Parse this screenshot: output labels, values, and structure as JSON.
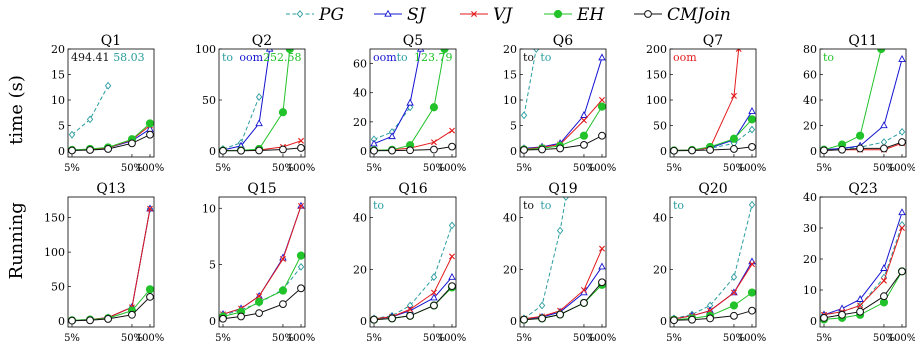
{
  "figure": {
    "ylabel": "Running time (s)",
    "ylabel_words": [
      "Running",
      "time (s)"
    ],
    "x_ticks": [
      "5%",
      "50%",
      "100%"
    ]
  },
  "legend": {
    "placement": "top-center",
    "series": [
      {
        "name": "PG",
        "color": "#2a9d9f",
        "dash": true,
        "marker": "diamond"
      },
      {
        "name": "SJ",
        "color": "#1414d2",
        "dash": false,
        "marker": "triangle"
      },
      {
        "name": "VJ",
        "color": "#e31a1c",
        "dash": false,
        "marker": "cross"
      },
      {
        "name": "EH",
        "color": "#22c22a",
        "dash": false,
        "marker": "filled-circle"
      },
      {
        "name": "CMJoin",
        "color": "#111111",
        "dash": false,
        "marker": "open-circle"
      }
    ]
  },
  "chart_data": [
    {
      "type": "line",
      "title": "Q1",
      "x": [
        5,
        10,
        20,
        50,
        100
      ],
      "ylim": [
        0,
        20
      ],
      "yticks": [
        0,
        5,
        10,
        15,
        20
      ],
      "series": [
        {
          "name": "PG",
          "x": [
            5,
            10,
            20
          ],
          "values": [
            3.2,
            6.2,
            12.8
          ]
        },
        {
          "name": "SJ",
          "values": [
            0.2,
            0.3,
            0.6,
            2.0,
            4.3
          ]
        },
        {
          "name": "VJ",
          "values": [
            0.2,
            0.3,
            0.6,
            2.2,
            5.0
          ]
        },
        {
          "name": "EH",
          "values": [
            0.2,
            0.4,
            0.7,
            2.3,
            5.4
          ]
        },
        {
          "name": "CMJoin",
          "values": [
            0.1,
            0.2,
            0.4,
            1.5,
            3.2
          ]
        }
      ],
      "annotations": [
        {
          "text": "494.41",
          "series": "CMJoin"
        },
        {
          "text": "58.03",
          "series": "PG"
        }
      ]
    },
    {
      "type": "line",
      "title": "Q2",
      "x": [
        5,
        10,
        20,
        50,
        100
      ],
      "ylim": [
        0,
        100
      ],
      "yticks": [
        0,
        50,
        100
      ],
      "series": [
        {
          "name": "PG",
          "x": [
            5,
            10,
            20
          ],
          "values": [
            2,
            8,
            53
          ]
        },
        {
          "name": "SJ",
          "x": [
            5,
            10,
            20,
            30
          ],
          "values": [
            1,
            5,
            27,
            100
          ]
        },
        {
          "name": "VJ",
          "values": [
            0.5,
            0.6,
            1,
            4,
            10
          ]
        },
        {
          "name": "EH",
          "x": [
            5,
            10,
            20,
            50,
            65
          ],
          "values": [
            0.5,
            0.6,
            2,
            38,
            100
          ]
        },
        {
          "name": "CMJoin",
          "values": [
            0.2,
            0.3,
            0.5,
            1.5,
            3
          ]
        }
      ],
      "annotations": [
        {
          "text": "to",
          "series": "PG"
        },
        {
          "text": "oom",
          "series": "SJ"
        },
        {
          "text": "252.58",
          "series": "EH"
        }
      ]
    },
    {
      "type": "line",
      "title": "Q5",
      "x": [
        5,
        10,
        20,
        50,
        100
      ],
      "ylim": [
        0,
        70
      ],
      "yticks": [
        0,
        20,
        40,
        60
      ],
      "series": [
        {
          "name": "PG",
          "x": [
            5,
            10,
            20
          ],
          "values": [
            8,
            13,
            30
          ]
        },
        {
          "name": "SJ",
          "x": [
            5,
            10,
            20,
            30
          ],
          "values": [
            5,
            10,
            33,
            70
          ]
        },
        {
          "name": "VJ",
          "values": [
            0.5,
            0.8,
            2,
            6,
            14
          ]
        },
        {
          "name": "EH",
          "x": [
            5,
            10,
            20,
            50,
            75
          ],
          "values": [
            0.5,
            0.8,
            4,
            30,
            70
          ]
        },
        {
          "name": "CMJoin",
          "values": [
            0.2,
            0.3,
            0.5,
            1,
            3
          ]
        }
      ],
      "annotations": [
        {
          "text": "oom",
          "series": "SJ"
        },
        {
          "text": "to",
          "series": "PG"
        },
        {
          "text": "123.79",
          "series": "EH"
        }
      ]
    },
    {
      "type": "line",
      "title": "Q6",
      "x": [
        5,
        10,
        20,
        50,
        100
      ],
      "ylim": [
        0,
        20
      ],
      "yticks": [
        0,
        5,
        10,
        15,
        20
      ],
      "series": [
        {
          "name": "PG",
          "x": [
            5,
            8
          ],
          "values": [
            7,
            20
          ]
        },
        {
          "name": "SJ",
          "values": [
            0.5,
            0.8,
            1.5,
            7,
            18.3
          ]
        },
        {
          "name": "VJ",
          "values": [
            0.4,
            0.7,
            1.3,
            6,
            10
          ]
        },
        {
          "name": "EH",
          "values": [
            0.3,
            0.5,
            1,
            3,
            8.7
          ]
        },
        {
          "name": "CMJoin",
          "values": [
            0.2,
            0.3,
            0.5,
            1.2,
            3
          ]
        }
      ],
      "annotations": [
        {
          "text": "to",
          "series": "CMJoin"
        },
        {
          "text": "to",
          "series": "PG"
        }
      ]
    },
    {
      "type": "line",
      "title": "Q7",
      "x": [
        5,
        10,
        20,
        50,
        100
      ],
      "ylim": [
        0,
        200
      ],
      "yticks": [
        0,
        50,
        100,
        150,
        200
      ],
      "series": [
        {
          "name": "PG",
          "values": [
            1,
            2,
            5,
            15,
            42
          ]
        },
        {
          "name": "SJ",
          "values": [
            1,
            2,
            6,
            22,
            78
          ]
        },
        {
          "name": "VJ",
          "x": [
            5,
            10,
            20,
            50,
            60
          ],
          "values": [
            1,
            2,
            6,
            108,
            200
          ]
        },
        {
          "name": "EH",
          "values": [
            1,
            2,
            8,
            24,
            62
          ]
        },
        {
          "name": "CMJoin",
          "values": [
            0.5,
            1,
            2,
            4,
            8
          ]
        }
      ],
      "annotations": [
        {
          "text": "oom",
          "series": "VJ"
        }
      ]
    },
    {
      "type": "line",
      "title": "Q11",
      "x": [
        5,
        10,
        20,
        50,
        100
      ],
      "ylim": [
        0,
        80
      ],
      "yticks": [
        0,
        20,
        40,
        60,
        80
      ],
      "series": [
        {
          "name": "PG",
          "values": [
            1,
            2,
            3,
            7,
            15
          ]
        },
        {
          "name": "SJ",
          "values": [
            1,
            2,
            4,
            20,
            72
          ]
        },
        {
          "name": "VJ",
          "values": [
            0.5,
            1,
            1,
            1,
            6
          ]
        },
        {
          "name": "EH",
          "x": [
            5,
            10,
            20,
            45
          ],
          "values": [
            1,
            5,
            12,
            80
          ]
        },
        {
          "name": "CMJoin",
          "values": [
            0.5,
            1,
            2,
            2,
            7
          ]
        }
      ],
      "annotations": [
        {
          "text": "to",
          "series": "EH"
        }
      ]
    },
    {
      "type": "line",
      "title": "Q13",
      "x": [
        5,
        10,
        20,
        50,
        100
      ],
      "ylim": [
        0,
        180
      ],
      "yticks": [
        0,
        50,
        100,
        150
      ],
      "series": [
        {
          "name": "PG",
          "values": [
            1,
            2,
            5,
            20,
            163
          ]
        },
        {
          "name": "SJ",
          "values": [
            1,
            2,
            5,
            20,
            163
          ]
        },
        {
          "name": "VJ",
          "values": [
            1,
            2,
            5,
            20,
            163
          ]
        },
        {
          "name": "EH",
          "values": [
            1,
            2,
            4,
            15,
            46
          ]
        },
        {
          "name": "CMJoin",
          "values": [
            0.5,
            1,
            3,
            9,
            35
          ]
        }
      ]
    },
    {
      "type": "line",
      "title": "Q15",
      "x": [
        5,
        10,
        20,
        50,
        100
      ],
      "ylim": [
        0,
        11
      ],
      "yticks": [
        0,
        5,
        10
      ],
      "series": [
        {
          "name": "PG",
          "values": [
            0.5,
            1,
            1.6,
            2.8,
            4.8
          ]
        },
        {
          "name": "SJ",
          "values": [
            0.6,
            1.1,
            2.2,
            5.6,
            10.2
          ]
        },
        {
          "name": "VJ",
          "values": [
            0.6,
            1.1,
            2.2,
            5.5,
            10.2
          ]
        },
        {
          "name": "EH",
          "values": [
            0.4,
            0.8,
            1.7,
            2.7,
            5.8
          ]
        },
        {
          "name": "CMJoin",
          "values": [
            0.2,
            0.4,
            0.7,
            1.5,
            2.9
          ]
        }
      ]
    },
    {
      "type": "line",
      "title": "Q16",
      "x": [
        5,
        10,
        20,
        50,
        100
      ],
      "ylim": [
        0,
        48
      ],
      "yticks": [
        0,
        20,
        40
      ],
      "series": [
        {
          "name": "PG",
          "values": [
            1,
            2,
            6,
            17,
            37
          ]
        },
        {
          "name": "SJ",
          "values": [
            0.8,
            1.6,
            4,
            9,
            17
          ]
        },
        {
          "name": "VJ",
          "values": [
            0.8,
            1.7,
            4.5,
            11,
            25
          ]
        },
        {
          "name": "EH",
          "values": [
            0.5,
            1,
            2,
            6,
            13
          ]
        },
        {
          "name": "CMJoin",
          "values": [
            0.5,
            1,
            2,
            6,
            13.5
          ]
        }
      ],
      "annotations": [
        {
          "text": "to",
          "series": "PG"
        }
      ]
    },
    {
      "type": "line",
      "title": "Q19",
      "x": [
        5,
        10,
        20,
        50,
        100
      ],
      "ylim": [
        0,
        48
      ],
      "yticks": [
        0,
        20,
        40
      ],
      "series": [
        {
          "name": "PG",
          "x": [
            5,
            10,
            20,
            25
          ],
          "values": [
            1,
            6,
            35,
            48
          ]
        },
        {
          "name": "SJ",
          "values": [
            0.8,
            1.5,
            3.5,
            11,
            21
          ]
        },
        {
          "name": "VJ",
          "values": [
            0.9,
            1.8,
            4,
            12,
            28
          ]
        },
        {
          "name": "EH",
          "values": [
            0.5,
            1,
            2.5,
            7,
            14
          ]
        },
        {
          "name": "CMJoin",
          "values": [
            0.5,
            1,
            2.5,
            7,
            15
          ]
        }
      ],
      "annotations": [
        {
          "text": "to",
          "series": "CMJoin"
        },
        {
          "text": "to",
          "series": "PG"
        }
      ]
    },
    {
      "type": "line",
      "title": "Q20",
      "x": [
        5,
        10,
        20,
        50,
        100
      ],
      "ylim": [
        0,
        48
      ],
      "yticks": [
        0,
        20,
        40
      ],
      "series": [
        {
          "name": "PG",
          "values": [
            1,
            2.5,
            6,
            17,
            45
          ]
        },
        {
          "name": "SJ",
          "values": [
            0.8,
            2,
            4,
            11,
            23
          ]
        },
        {
          "name": "VJ",
          "values": [
            0.8,
            2,
            4,
            11,
            22
          ]
        },
        {
          "name": "EH",
          "values": [
            0.5,
            1,
            2,
            6,
            11
          ]
        },
        {
          "name": "CMJoin",
          "values": [
            0.3,
            0.5,
            1,
            2,
            4
          ]
        }
      ],
      "annotations": [
        {
          "text": "to",
          "series": "PG"
        }
      ]
    },
    {
      "type": "line",
      "title": "Q23",
      "x": [
        5,
        10,
        20,
        50,
        100
      ],
      "ylim": [
        0,
        40
      ],
      "yticks": [
        0,
        10,
        20,
        30,
        40
      ],
      "series": [
        {
          "name": "PG",
          "values": [
            2,
            3,
            5,
            14,
            31
          ]
        },
        {
          "name": "SJ",
          "values": [
            2,
            4,
            7,
            17,
            35
          ]
        },
        {
          "name": "VJ",
          "values": [
            2,
            3,
            5,
            13,
            30
          ]
        },
        {
          "name": "EH",
          "values": [
            0.5,
            1,
            2,
            6,
            16
          ]
        },
        {
          "name": "CMJoin",
          "values": [
            1,
            2,
            3,
            8,
            16
          ]
        }
      ]
    }
  ]
}
